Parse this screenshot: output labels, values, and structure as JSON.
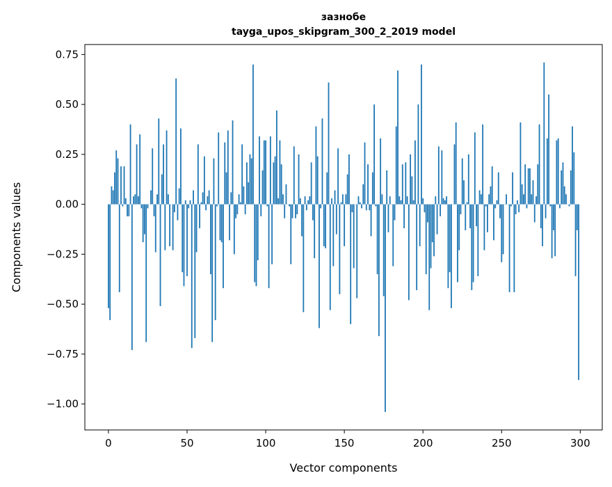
{
  "chart_data": {
    "type": "bar",
    "title_line1": "зазнобе",
    "title_line2": "tayga_upos_skipgram_300_2_2019 model",
    "xlabel": "Vector components",
    "ylabel": "Components values",
    "xlim": [
      -15,
      314
    ],
    "ylim": [
      -1.13,
      0.8
    ],
    "xticks": [
      0,
      50,
      100,
      150,
      200,
      250,
      300
    ],
    "xtick_labels": [
      "0",
      "50",
      "100",
      "150",
      "200",
      "250",
      "300"
    ],
    "yticks": [
      0.75,
      0.5,
      0.25,
      0.0,
      -0.25,
      -0.5,
      -0.75,
      -1.0
    ],
    "ytick_labels": [
      "0.75",
      "0.50",
      "0.25",
      "0.00",
      "−0.25",
      "−0.50",
      "−0.75",
      "−1.00"
    ],
    "bar_color": "#1f77b4",
    "values": [
      -0.52,
      -0.58,
      0.09,
      0.07,
      0.16,
      0.27,
      0.23,
      -0.44,
      0.19,
      -0.01,
      0.19,
      0.03,
      -0.06,
      -0.06,
      0.4,
      -0.73,
      0.04,
      0.05,
      0.3,
      0.04,
      0.35,
      -0.02,
      -0.19,
      -0.15,
      -0.69,
      -0.02,
      0.0,
      0.07,
      0.28,
      -0.06,
      -0.24,
      0.05,
      0.43,
      -0.51,
      0.15,
      0.3,
      -0.23,
      0.37,
      0.05,
      -0.21,
      0.0,
      -0.23,
      -0.04,
      0.63,
      -0.08,
      0.08,
      0.38,
      -0.34,
      -0.41,
      0.02,
      -0.36,
      -0.02,
      0.02,
      -0.72,
      0.07,
      -0.67,
      -0.24,
      0.3,
      -0.12,
      0.01,
      0.06,
      0.24,
      -0.03,
      0.04,
      0.07,
      -0.35,
      -0.69,
      0.23,
      -0.58,
      -0.01,
      0.36,
      -0.18,
      -0.19,
      -0.42,
      0.31,
      0.16,
      0.37,
      -0.18,
      0.06,
      0.42,
      -0.25,
      -0.07,
      -0.05,
      0.05,
      0.01,
      0.3,
      0.09,
      -0.05,
      0.21,
      0.11,
      0.25,
      0.23,
      0.7,
      -0.39,
      -0.41,
      -0.28,
      0.34,
      -0.06,
      0.17,
      0.32,
      0.32,
      -0.01,
      -0.42,
      0.34,
      -0.3,
      0.21,
      0.24,
      0.47,
      0.03,
      0.32,
      0.2,
      0.05,
      -0.07,
      0.1,
      0.0,
      -0.01,
      -0.3,
      -0.07,
      0.29,
      -0.07,
      -0.05,
      0.25,
      0.03,
      -0.16,
      -0.54,
      0.04,
      -0.03,
      0.02,
      0.04,
      0.21,
      -0.08,
      -0.27,
      0.39,
      0.24,
      -0.62,
      -0.02,
      0.43,
      -0.21,
      -0.22,
      0.16,
      0.61,
      -0.53,
      0.03,
      -0.31,
      0.07,
      -0.15,
      0.28,
      -0.45,
      0.01,
      0.05,
      -0.21,
      0.05,
      0.15,
      0.25,
      -0.6,
      -0.04,
      -0.32,
      0.0,
      -0.47,
      0.04,
      0.01,
      -0.02,
      0.1,
      0.31,
      -0.03,
      0.2,
      -0.03,
      -0.16,
      0.16,
      0.5,
      -0.01,
      -0.35,
      -0.66,
      0.33,
      0.05,
      -0.46,
      -1.04,
      0.17,
      -0.14,
      0.04,
      0.0,
      -0.31,
      -0.08,
      0.39,
      0.67,
      0.04,
      0.02,
      0.2,
      -0.12,
      0.21,
      0.04,
      -0.48,
      0.25,
      0.14,
      0.02,
      0.32,
      -0.43,
      0.5,
      -0.21,
      0.7,
      0.03,
      -0.04,
      -0.35,
      -0.09,
      -0.53,
      -0.32,
      -0.19,
      -0.26,
      0.04,
      -0.15,
      0.29,
      -0.06,
      0.27,
      0.03,
      0.02,
      0.04,
      -0.42,
      -0.34,
      -0.52,
      0.0,
      0.3,
      0.41,
      -0.39,
      -0.23,
      -0.05,
      0.23,
      0.12,
      -0.13,
      0.01,
      0.25,
      -0.12,
      -0.43,
      -0.39,
      0.36,
      -0.11,
      -0.36,
      0.07,
      0.05,
      0.4,
      -0.23,
      -0.01,
      -0.14,
      0.05,
      0.09,
      0.19,
      -0.18,
      -0.02,
      0.02,
      0.16,
      -0.07,
      -0.29,
      -0.25,
      0.0,
      0.05,
      0.0,
      -0.44,
      -0.01,
      0.16,
      -0.44,
      -0.05,
      0.02,
      -0.04,
      0.41,
      0.1,
      0.05,
      0.2,
      -0.02,
      0.18,
      0.18,
      0.05,
      0.12,
      -0.09,
      0.04,
      0.2,
      0.4,
      -0.12,
      -0.21,
      0.71,
      -0.07,
      0.33,
      0.55,
      -0.01,
      -0.27,
      -0.13,
      -0.26,
      0.32,
      0.33,
      -0.02,
      0.17,
      0.21,
      0.09,
      0.05,
      0.0,
      -0.01,
      0.17,
      0.39,
      0.26,
      -0.36,
      -0.13,
      -0.88
    ]
  }
}
